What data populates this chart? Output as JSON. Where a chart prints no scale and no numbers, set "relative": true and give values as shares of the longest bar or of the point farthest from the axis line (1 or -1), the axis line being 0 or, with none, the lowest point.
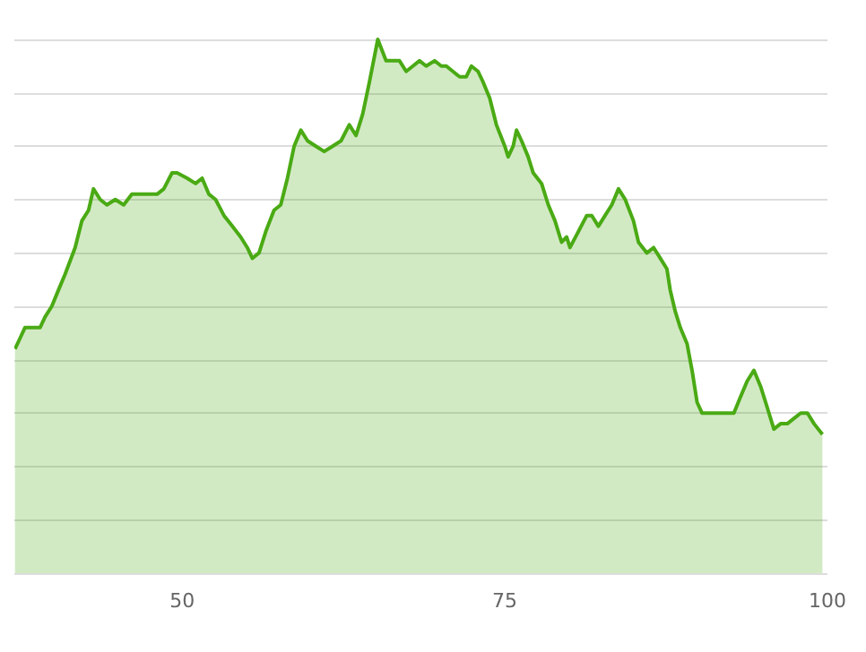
{
  "chart_data": {
    "type": "area",
    "relative": true,
    "grid": "y",
    "xlim": [
      37,
      100
    ],
    "xticks": [
      50,
      75,
      100
    ],
    "x": [
      37.05,
      37.44,
      37.82,
      38.99,
      39.38,
      39.9,
      40.41,
      40.93,
      41.71,
      42.23,
      42.75,
      43.13,
      43.65,
      44.17,
      44.82,
      45.47,
      46.11,
      46.76,
      47.41,
      48.06,
      48.58,
      49.22,
      49.61,
      50.39,
      51.04,
      51.55,
      52.07,
      52.59,
      53.24,
      53.89,
      54.53,
      55.05,
      55.44,
      55.96,
      56.48,
      57.12,
      57.64,
      58.16,
      58.68,
      59.2,
      59.72,
      60.36,
      61.01,
      61.66,
      62.31,
      62.95,
      63.47,
      63.99,
      64.51,
      65.16,
      65.8,
      66.32,
      66.84,
      67.36,
      67.88,
      68.39,
      68.91,
      69.56,
      70.08,
      70.47,
      70.98,
      71.5,
      72.02,
      72.41,
      72.93,
      73.32,
      73.83,
      74.35,
      75,
      75.26,
      75.65,
      75.91,
      76.3,
      76.81,
      77.2,
      77.85,
      78.37,
      78.89,
      79.4,
      79.79,
      80.05,
      80.7,
      81.35,
      81.74,
      82.25,
      82.77,
      83.29,
      83.81,
      84.33,
      84.97,
      85.36,
      86.01,
      86.53,
      87.05,
      87.56,
      87.82,
      88.21,
      88.6,
      89.12,
      89.51,
      89.9,
      90.28,
      90.8,
      91.45,
      92.1,
      92.75,
      93.26,
      93.78,
      94.3,
      94.82,
      95.34,
      95.85,
      96.37,
      96.89,
      97.41,
      97.93,
      98.45,
      98.96,
      99.61
    ],
    "series": [
      {
        "color": "#4aaa14",
        "values": [
          0.42,
          0.44,
          0.46,
          0.46,
          0.48,
          0.5,
          0.53,
          0.56,
          0.61,
          0.66,
          0.68,
          0.72,
          0.7,
          0.69,
          0.7,
          0.69,
          0.71,
          0.71,
          0.71,
          0.71,
          0.72,
          0.75,
          0.75,
          0.74,
          0.73,
          0.74,
          0.71,
          0.7,
          0.67,
          0.65,
          0.63,
          0.61,
          0.59,
          0.6,
          0.64,
          0.68,
          0.69,
          0.74,
          0.8,
          0.83,
          0.81,
          0.8,
          0.79,
          0.8,
          0.81,
          0.84,
          0.82,
          0.86,
          0.92,
          1,
          0.96,
          0.96,
          0.96,
          0.94,
          0.95,
          0.96,
          0.95,
          0.96,
          0.95,
          0.95,
          0.94,
          0.93,
          0.93,
          0.95,
          0.94,
          0.92,
          0.89,
          0.84,
          0.8,
          0.78,
          0.8,
          0.83,
          0.81,
          0.78,
          0.75,
          0.73,
          0.69,
          0.66,
          0.62,
          0.63,
          0.61,
          0.64,
          0.67,
          0.67,
          0.65,
          0.67,
          0.69,
          0.72,
          0.7,
          0.66,
          0.62,
          0.6,
          0.61,
          0.59,
          0.57,
          0.53,
          0.49,
          0.46,
          0.43,
          0.38,
          0.32,
          0.3,
          0.3,
          0.3,
          0.3,
          0.3,
          0.33,
          0.36,
          0.38,
          0.35,
          0.31,
          0.27,
          0.28,
          0.28,
          0.29,
          0.3,
          0.3,
          0.28,
          0.26
        ]
      }
    ]
  }
}
